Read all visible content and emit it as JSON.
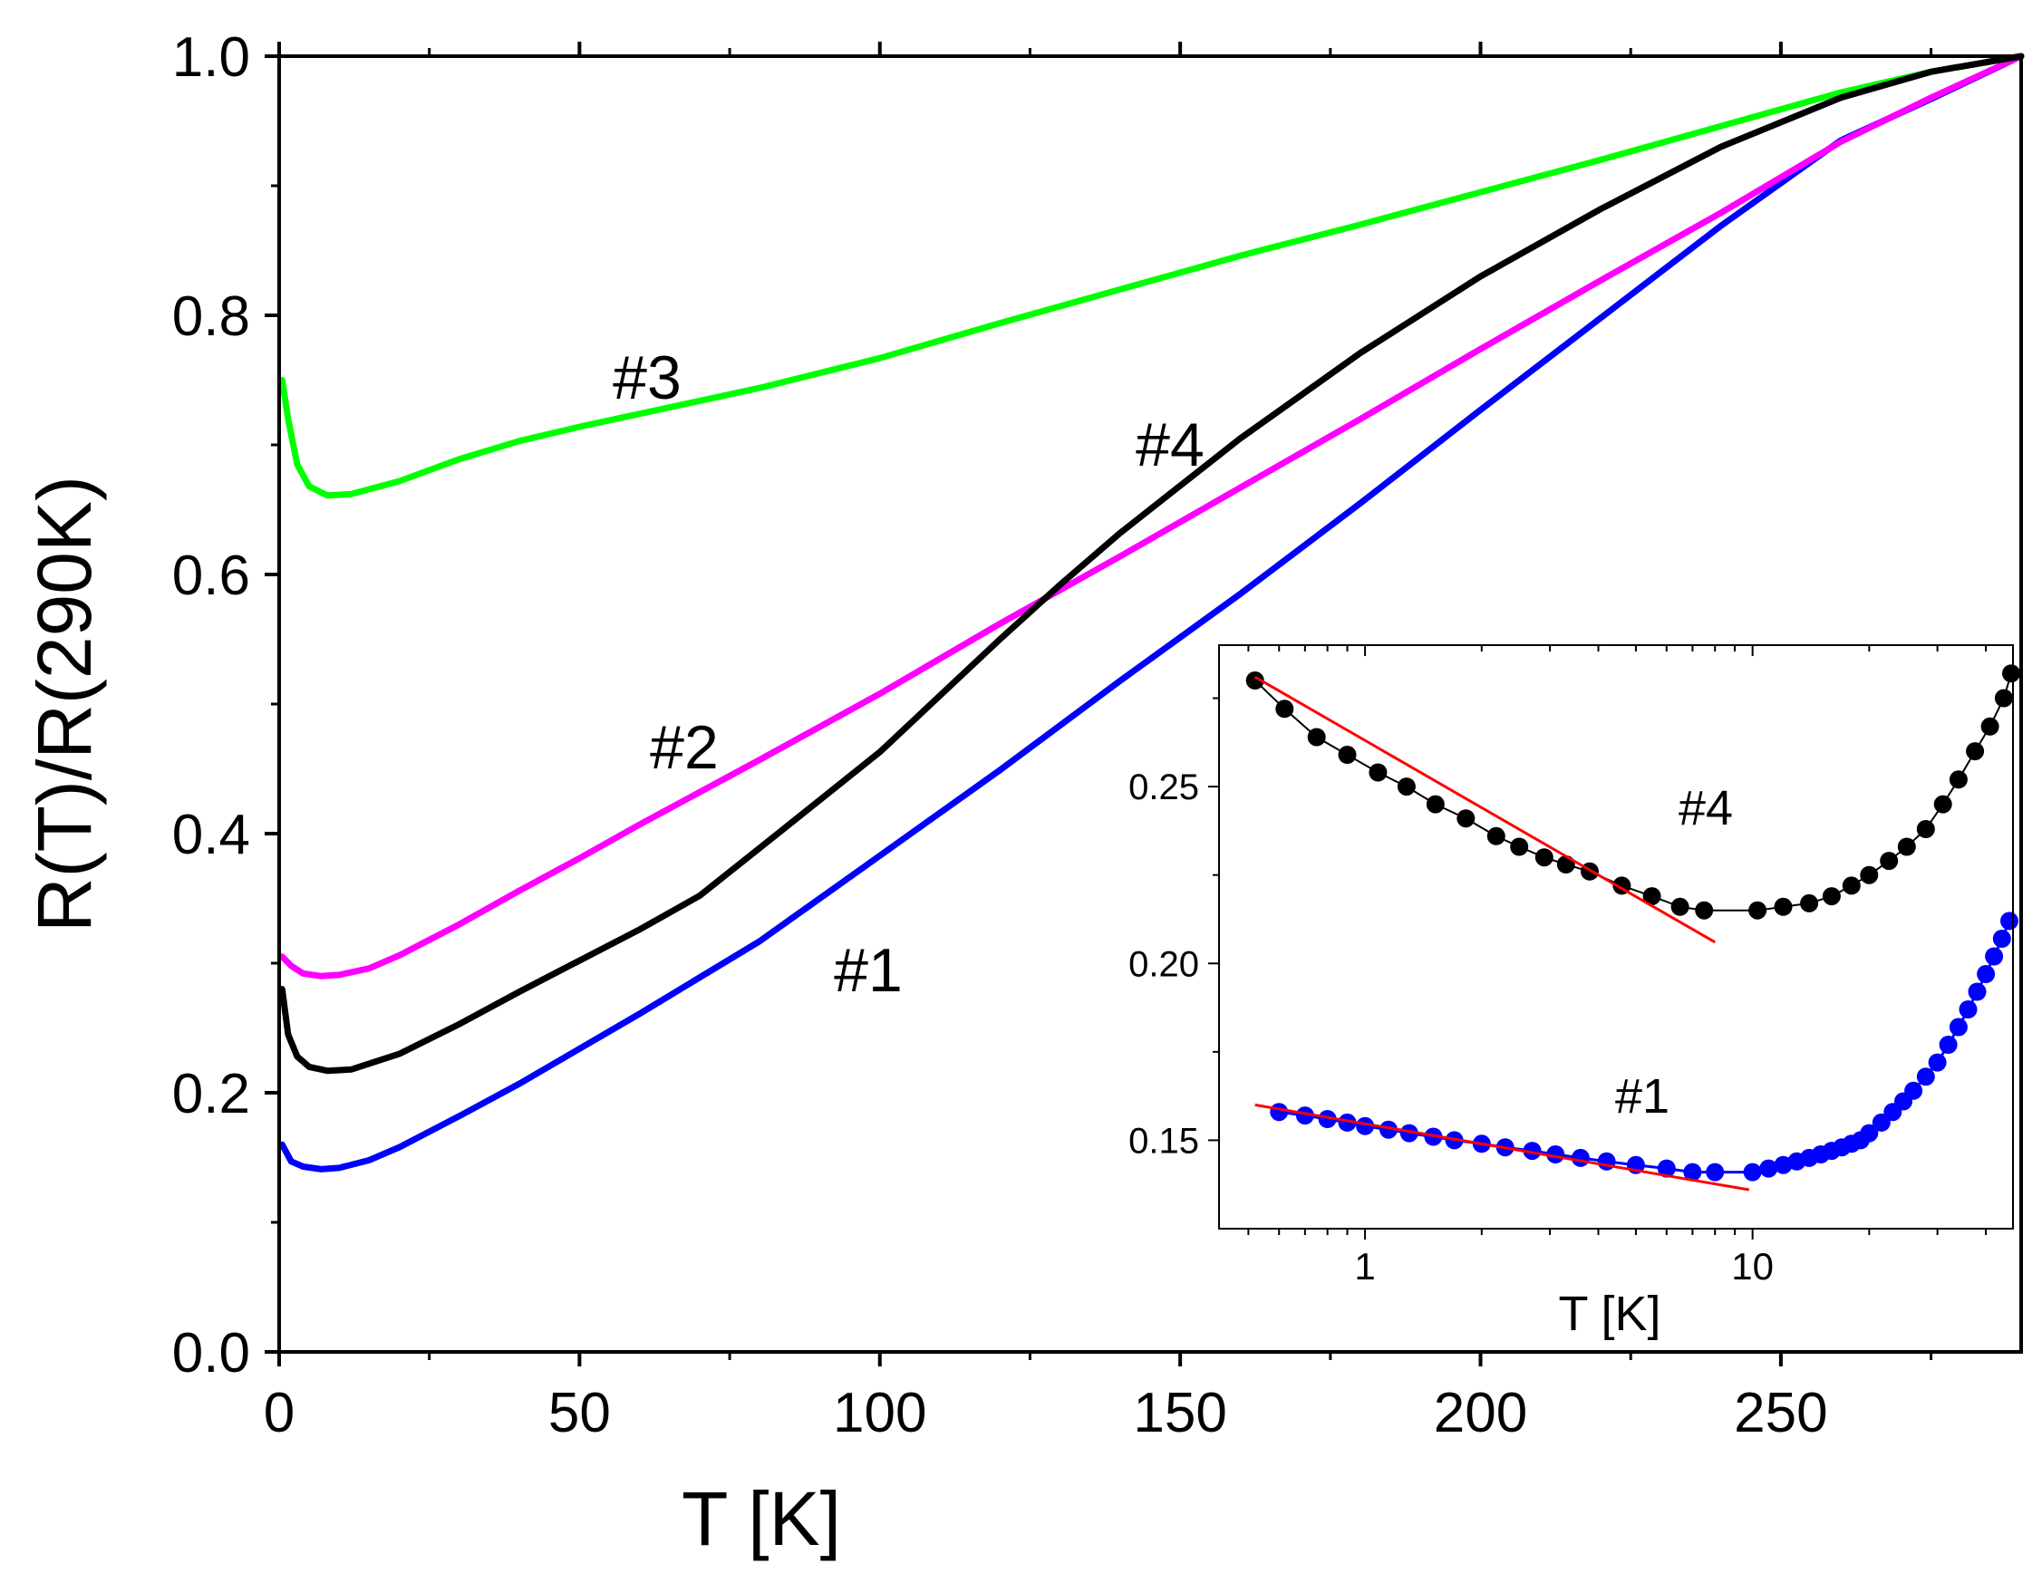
{
  "chart_data": [
    {
      "type": "line",
      "xlabel": "T [K]",
      "ylabel": "R(T)/R(290K)",
      "xlim": [
        0,
        290
      ],
      "ylim": [
        0.0,
        1.0
      ],
      "xticks": [
        0,
        50,
        100,
        150,
        200,
        250
      ],
      "xtick_labels": [
        "0",
        "50",
        "100",
        "150",
        "200",
        "250"
      ],
      "yticks": [
        0.0,
        0.2,
        0.4,
        0.6,
        0.8,
        1.0
      ],
      "ytick_labels": [
        "0.0",
        "0.2",
        "0.4",
        "0.6",
        "0.8",
        "1.0"
      ],
      "grid": false,
      "series": [
        {
          "name": "#1",
          "color": "#0000ff",
          "x": [
            0.5,
            2,
            4,
            7,
            10,
            15,
            20,
            30,
            40,
            50,
            60,
            80,
            100,
            120,
            140,
            160,
            180,
            200,
            220,
            240,
            260,
            275,
            290
          ],
          "y": [
            0.16,
            0.147,
            0.143,
            0.141,
            0.142,
            0.148,
            0.158,
            0.182,
            0.207,
            0.234,
            0.261,
            0.317,
            0.383,
            0.449,
            0.518,
            0.585,
            0.655,
            0.727,
            0.798,
            0.869,
            0.935,
            0.967,
            1.0
          ]
        },
        {
          "name": "#2",
          "color": "#ff00ff",
          "x": [
            0.5,
            2,
            4,
            7,
            10,
            15,
            20,
            30,
            40,
            50,
            60,
            80,
            100,
            120,
            140,
            160,
            180,
            200,
            220,
            240,
            260,
            275,
            290
          ],
          "y": [
            0.305,
            0.298,
            0.292,
            0.29,
            0.291,
            0.296,
            0.306,
            0.33,
            0.356,
            0.381,
            0.407,
            0.457,
            0.508,
            0.562,
            0.614,
            0.667,
            0.72,
            0.774,
            0.827,
            0.879,
            0.934,
            0.968,
            1.0
          ]
        },
        {
          "name": "#3",
          "color": "#00ff00",
          "x": [
            0.5,
            1.5,
            3,
            5,
            8,
            12,
            20,
            30,
            40,
            50,
            60,
            80,
            100,
            120,
            140,
            160,
            180,
            200,
            220,
            240,
            260,
            275,
            290
          ],
          "y": [
            0.75,
            0.72,
            0.685,
            0.668,
            0.661,
            0.662,
            0.672,
            0.689,
            0.703,
            0.714,
            0.724,
            0.744,
            0.767,
            0.794,
            0.82,
            0.846,
            0.87,
            0.895,
            0.92,
            0.946,
            0.972,
            0.988,
            1.0
          ]
        },
        {
          "name": "#4",
          "color": "#000000",
          "x": [
            0.5,
            1.5,
            3,
            5,
            8,
            12,
            20,
            30,
            40,
            50,
            60,
            70,
            83,
            100,
            120,
            130,
            140,
            160,
            180,
            200,
            220,
            240,
            260,
            275,
            290
          ],
          "y": [
            0.28,
            0.245,
            0.228,
            0.22,
            0.217,
            0.218,
            0.23,
            0.253,
            0.278,
            0.302,
            0.326,
            0.352,
            0.4,
            0.463,
            0.55,
            0.592,
            0.632,
            0.705,
            0.771,
            0.83,
            0.882,
            0.93,
            0.968,
            0.988,
            1.0
          ]
        }
      ],
      "annotations": [
        {
          "text": "#1",
          "x": 98,
          "y": 0.3
        },
        {
          "text": "#2",
          "x": 67,
          "y": 0.47
        },
        {
          "text": "#3",
          "x": 61,
          "y": 0.75
        },
        {
          "text": "#4",
          "x": 150,
          "y": 0.7
        }
      ]
    },
    {
      "type": "scatter",
      "inset": true,
      "placement": "bottom-right",
      "xlabel": "T [K]",
      "xscale": "log",
      "xlim": [
        0.42,
        47
      ],
      "ylim": [
        0.125,
        0.29
      ],
      "xticks": [
        1,
        10
      ],
      "xtick_labels": [
        "1",
        "10"
      ],
      "yticks": [
        0.15,
        0.2,
        0.25
      ],
      "ytick_labels": [
        "0.15",
        "0.20",
        "0.25"
      ],
      "series": [
        {
          "name": "#4",
          "color": "#000000",
          "x": [
            0.52,
            0.62,
            0.75,
            0.9,
            1.08,
            1.28,
            1.52,
            1.82,
            2.18,
            2.5,
            2.9,
            3.3,
            3.8,
            4.6,
            5.5,
            6.5,
            7.5,
            10.3,
            12,
            14,
            16,
            18,
            20,
            22.5,
            25,
            28,
            31,
            34,
            37.5,
            41,
            44.5,
            46.5
          ],
          "y": [
            0.28,
            0.272,
            0.264,
            0.259,
            0.254,
            0.25,
            0.245,
            0.241,
            0.236,
            0.233,
            0.23,
            0.228,
            0.226,
            0.222,
            0.219,
            0.216,
            0.215,
            0.215,
            0.216,
            0.217,
            0.219,
            0.222,
            0.225,
            0.229,
            0.233,
            0.238,
            0.245,
            0.252,
            0.26,
            0.267,
            0.275,
            0.282
          ]
        },
        {
          "name": "#1",
          "color": "#0000ff",
          "x": [
            0.6,
            0.7,
            0.8,
            0.9,
            1.0,
            1.15,
            1.3,
            1.5,
            1.7,
            2.0,
            2.3,
            2.7,
            3.1,
            3.6,
            4.2,
            5.0,
            6.0,
            7.0,
            8.0,
            10.0,
            11.0,
            12.0,
            13.0,
            14.0,
            15.0,
            16.0,
            17.0,
            18.0,
            19.0,
            20.0,
            21.5,
            23.0,
            24.5,
            26.0,
            28.0,
            30.0,
            32.0,
            34.0,
            36.0,
            38.0,
            40.0,
            42.0,
            44.0,
            46.0
          ],
          "y": [
            0.158,
            0.157,
            0.156,
            0.155,
            0.154,
            0.153,
            0.152,
            0.151,
            0.15,
            0.149,
            0.148,
            0.147,
            0.146,
            0.145,
            0.144,
            0.143,
            0.142,
            0.141,
            0.141,
            0.141,
            0.142,
            0.143,
            0.144,
            0.145,
            0.146,
            0.147,
            0.148,
            0.149,
            0.15,
            0.152,
            0.155,
            0.158,
            0.161,
            0.164,
            0.168,
            0.172,
            0.177,
            0.182,
            0.187,
            0.192,
            0.197,
            0.202,
            0.207,
            0.212
          ]
        }
      ],
      "fits": [
        {
          "name": "fit #4",
          "color": "#ff0000",
          "x": [
            0.52,
            8.0
          ],
          "y": [
            0.281,
            0.206
          ]
        },
        {
          "name": "fit #1",
          "color": "#ff0000",
          "x": [
            0.52,
            9.8
          ],
          "y": [
            0.16,
            0.136
          ]
        }
      ],
      "annotations": [
        {
          "text": "#4",
          "x": 7.2,
          "y": 0.24
        },
        {
          "text": "#1",
          "x": 5.3,
          "y": 0.162
        }
      ]
    }
  ]
}
